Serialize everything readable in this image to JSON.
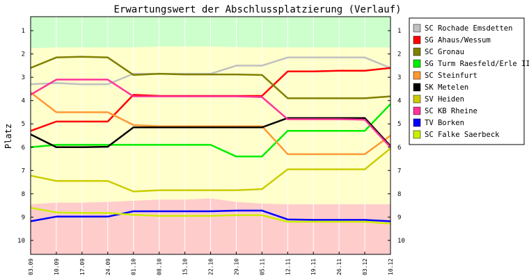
{
  "chart_data": {
    "type": "line",
    "title": "Erwartungswert der Abschlussplatzierung (Verlauf)",
    "ylabel": "Platz",
    "xlabel": "",
    "ylim": [
      0.4,
      10.6
    ],
    "y_inverted": true,
    "y_ticks": [
      1,
      2,
      3,
      4,
      5,
      6,
      7,
      8,
      9,
      10
    ],
    "x": [
      "03.09",
      "10.09",
      "17.09",
      "24.09",
      "01.10",
      "08.10",
      "15.10",
      "22.10",
      "29.10",
      "05.11",
      "12.11",
      "19.11",
      "26.11",
      "03.12",
      "10.12"
    ],
    "grid": true,
    "legend_position": "right",
    "zones": [
      {
        "name": "green",
        "color": "#ccffcc",
        "bounds": [
          [
            1.75,
            1.75
          ],
          [
            1.72,
            1.72
          ],
          [
            1.72,
            1.72
          ],
          [
            1.72,
            1.72
          ],
          [
            1.72,
            1.72
          ],
          [
            1.68,
            1.68
          ],
          [
            1.68,
            1.68
          ],
          [
            1.68,
            1.68
          ],
          [
            1.7,
            1.7
          ],
          [
            1.72,
            1.72
          ],
          [
            1.72,
            1.72
          ],
          [
            1.72,
            1.72
          ],
          [
            1.72,
            1.72
          ],
          [
            1.72,
            1.72
          ],
          [
            1.72,
            1.72
          ]
        ]
      },
      {
        "name": "yellow",
        "color": "#ffffcc",
        "bounds": [
          [
            8.45,
            8.45
          ],
          [
            8.38,
            8.38
          ],
          [
            8.38,
            8.38
          ],
          [
            8.35,
            8.35
          ],
          [
            8.3,
            8.3
          ],
          [
            8.25,
            8.25
          ],
          [
            8.25,
            8.25
          ],
          [
            8.2,
            8.2
          ],
          [
            8.35,
            8.35
          ],
          [
            8.42,
            8.42
          ],
          [
            8.45,
            8.45
          ],
          [
            8.45,
            8.45
          ],
          [
            8.45,
            8.45
          ],
          [
            8.45,
            8.45
          ],
          [
            8.45,
            8.45
          ]
        ]
      },
      {
        "name": "red",
        "color": "#ffcccc"
      }
    ],
    "series": [
      {
        "name": "SC Rochade Emsdetten",
        "color": "#c0c0c0",
        "values": [
          3.3,
          3.25,
          3.3,
          3.3,
          2.85,
          2.85,
          2.85,
          2.85,
          2.5,
          2.5,
          2.15,
          2.15,
          2.15,
          2.15,
          2.6
        ]
      },
      {
        "name": "SG Ahaus/Wessum",
        "color": "#ff0000",
        "values": [
          5.3,
          4.9,
          4.9,
          4.9,
          3.75,
          3.8,
          3.8,
          3.8,
          3.8,
          3.8,
          2.75,
          2.75,
          2.72,
          2.72,
          2.6
        ]
      },
      {
        "name": "SC Gronau",
        "color": "#808000",
        "values": [
          2.6,
          2.15,
          2.12,
          2.15,
          2.9,
          2.85,
          2.88,
          2.88,
          2.88,
          2.9,
          3.9,
          3.9,
          3.9,
          3.9,
          3.82
        ]
      },
      {
        "name": "SG Turm Raesfeld/Erle II",
        "color": "#00ee00",
        "values": [
          6.0,
          5.9,
          5.9,
          5.9,
          5.9,
          5.9,
          5.9,
          5.9,
          6.4,
          6.4,
          5.3,
          5.3,
          5.3,
          5.3,
          4.15
        ]
      },
      {
        "name": "SC Steinfurt",
        "color": "#ff9933",
        "values": [
          3.65,
          4.5,
          4.5,
          4.5,
          5.05,
          5.1,
          5.1,
          5.1,
          5.1,
          5.1,
          6.3,
          6.3,
          6.3,
          6.3,
          5.5
        ]
      },
      {
        "name": "SK Metelen",
        "color": "#000000",
        "values": [
          5.45,
          6.0,
          6.0,
          5.98,
          5.15,
          5.15,
          5.15,
          5.15,
          5.15,
          5.15,
          4.75,
          4.75,
          4.75,
          4.75,
          5.95
        ]
      },
      {
        "name": "SV Heiden",
        "color": "#cccc00",
        "values": [
          7.22,
          7.45,
          7.45,
          7.45,
          7.9,
          7.85,
          7.85,
          7.85,
          7.85,
          7.8,
          6.95,
          6.95,
          6.95,
          6.95,
          6.05
        ]
      },
      {
        "name": "SC KB Rheine",
        "color": "#ff3399",
        "values": [
          3.75,
          3.1,
          3.1,
          3.1,
          3.82,
          3.82,
          3.82,
          3.82,
          3.82,
          3.85,
          4.8,
          4.8,
          4.8,
          4.82,
          6.0
        ]
      },
      {
        "name": "TV Borken",
        "color": "#0000ff",
        "values": [
          9.18,
          8.98,
          8.98,
          8.98,
          8.75,
          8.75,
          8.75,
          8.75,
          8.72,
          8.72,
          9.1,
          9.12,
          9.12,
          9.12,
          9.18
        ]
      },
      {
        "name": "SC Falke Saerbeck",
        "color": "#ccee00",
        "values": [
          8.6,
          8.8,
          8.82,
          8.82,
          8.9,
          8.95,
          8.95,
          8.95,
          8.92,
          8.92,
          9.2,
          9.2,
          9.2,
          9.2,
          9.28
        ]
      }
    ]
  }
}
